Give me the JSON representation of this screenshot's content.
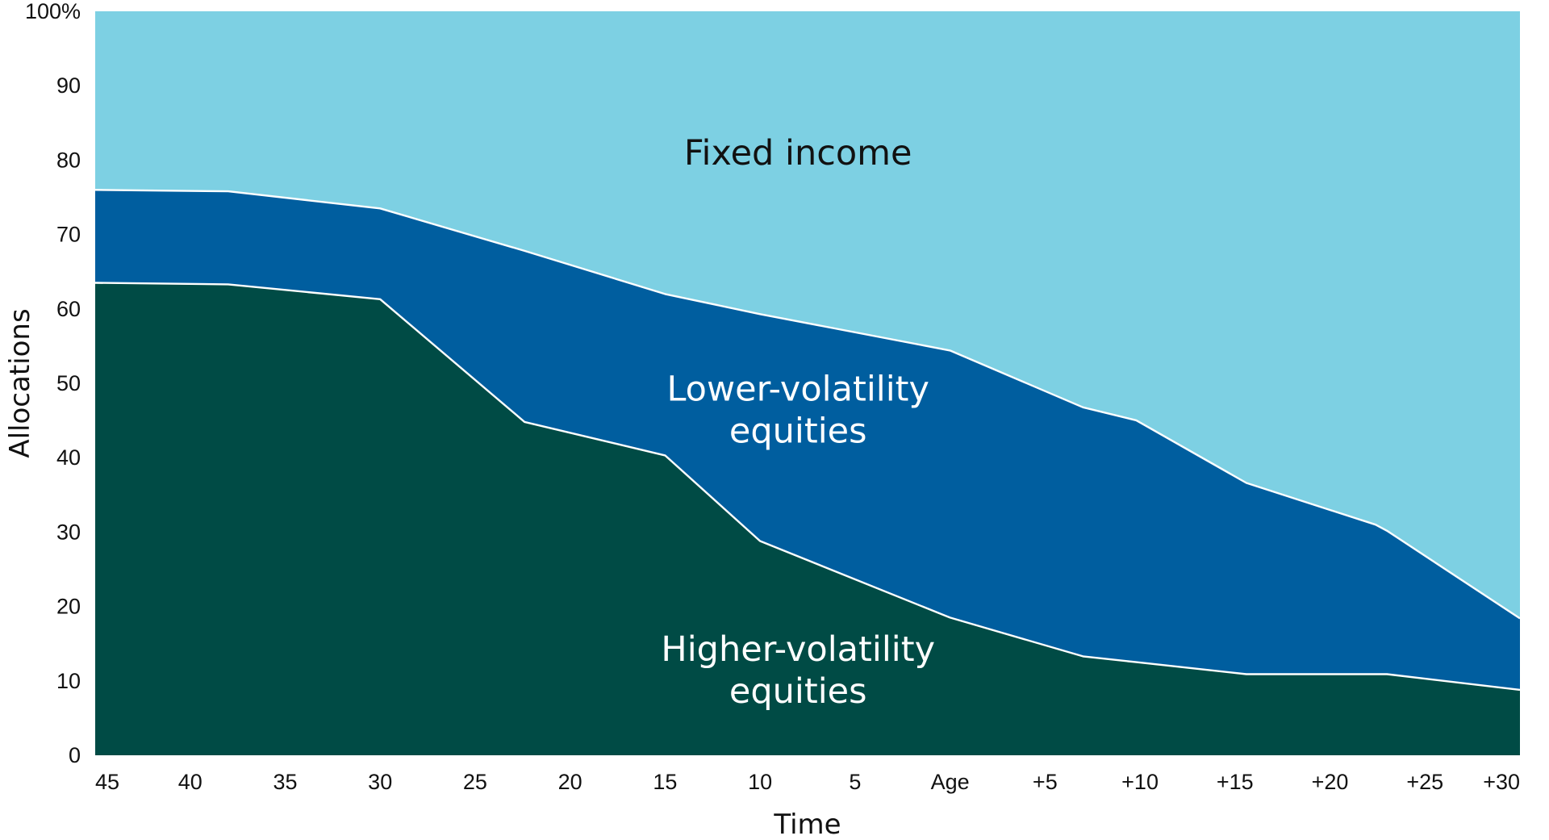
{
  "chart_data": {
    "type": "area",
    "stacked": true,
    "percent": true,
    "xlabel": "Time",
    "ylabel": "Allocations",
    "ylim": [
      0,
      100
    ],
    "yticks": [
      "0",
      "10",
      "20",
      "30",
      "40",
      "50",
      "60",
      "70",
      "80",
      "90",
      "100%"
    ],
    "xticks": [
      "45",
      "40",
      "35",
      "30",
      "25",
      "20",
      "15",
      "10",
      "5",
      "Age",
      "+5",
      "+10",
      "+15",
      "+20",
      "+25",
      "+30"
    ],
    "x_domain": [
      45,
      -30
    ],
    "series": [
      {
        "name": "Higher-volatility equities",
        "color": "#004b45",
        "label_color": "#ffffff",
        "x": [
          45,
          38,
          30,
          22.4,
          15,
          10,
          0,
          -7,
          -15.6,
          -23,
          -30
        ],
        "values": [
          63.5,
          63.3,
          61.3,
          44.8,
          40.3,
          28.8,
          18.5,
          13.3,
          10.9,
          10.9,
          8.8
        ]
      },
      {
        "name": "Lower-volatility equities",
        "color": "#005e9f",
        "label_color": "#ffffff",
        "x": [
          45,
          38,
          30,
          22.4,
          15,
          10,
          0,
          -9.8,
          -15.6,
          -22.4,
          -30
        ],
        "values": [
          12.5,
          12.5,
          12.2,
          23.0,
          21.7,
          30.5,
          35.9,
          32.5,
          25.7,
          20.1,
          9.6
        ]
      },
      {
        "name": "Fixed income",
        "color": "#7dd0e3",
        "label_color": "#111111",
        "x": [
          45,
          38,
          30,
          22.4,
          15,
          10,
          0,
          -9.8,
          -15.6,
          -22.4,
          -30
        ],
        "values": [
          24.0,
          24.2,
          26.5,
          32.2,
          38.0,
          40.7,
          45.6,
          54.5,
          63.4,
          69.1,
          81.6
        ]
      }
    ],
    "band_labels": [
      {
        "lines": [
          "Fixed income"
        ],
        "x": 8,
        "y": 81
      },
      {
        "lines": [
          "Lower-volatility",
          "equities"
        ],
        "x": 8,
        "y": 46.5
      },
      {
        "lines": [
          "Higher-volatility",
          "equities"
        ],
        "x": 8,
        "y": 11.5
      }
    ],
    "grid": false,
    "legend": "inline"
  }
}
